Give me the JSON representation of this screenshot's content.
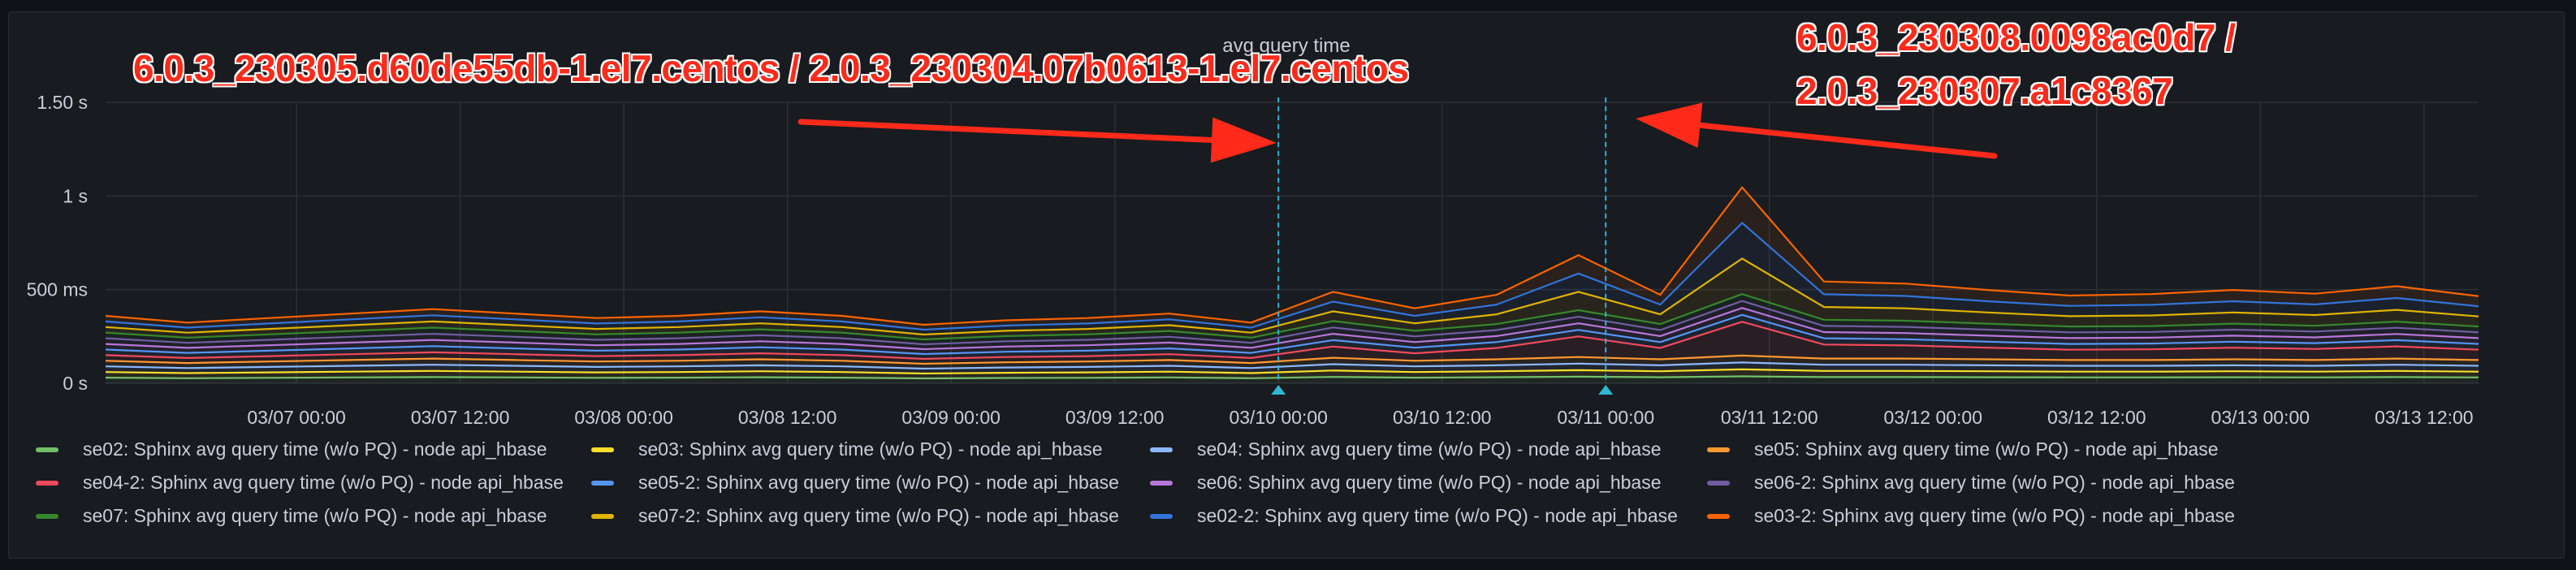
{
  "panel": {
    "title": "avg query time"
  },
  "annotations": {
    "left_text": "6.0.3_230305.d60de55db-1.el7.centos / 2.0.3_230304.07b0613-1.el7.centos",
    "right_line1": "6.0.3_230308.0098ac0d7 /",
    "right_line2": "2.0.3_230307.a1c8367"
  },
  "colors": {
    "panel_bg": "#181b1f",
    "grid": "#2c3038",
    "axis_text": "#ccccdc",
    "marker": "#2fb7d3",
    "annotation_red": "#ff2a1a"
  },
  "chart_data": {
    "type": "line",
    "title": "avg query time",
    "stacked": true,
    "fill": true,
    "x": [
      "03/06 10:00",
      "03/06 16:00",
      "03/06 22:00",
      "03/07 04:00",
      "03/07 10:00",
      "03/07 16:00",
      "03/07 22:00",
      "03/08 04:00",
      "03/08 10:00",
      "03/08 16:00",
      "03/08 22:00",
      "03/09 04:00",
      "03/09 10:00",
      "03/09 16:00",
      "03/09 22:00",
      "03/10 04:00",
      "03/10 10:00",
      "03/10 16:00",
      "03/10 22:00",
      "03/11 04:00",
      "03/11 10:00",
      "03/11 16:00",
      "03/11 22:00",
      "03/12 04:00",
      "03/12 10:00",
      "03/12 16:00",
      "03/12 22:00",
      "03/13 04:00",
      "03/13 10:00",
      "03/13 16:00"
    ],
    "x_ticks": [
      "03/07 00:00",
      "03/07 12:00",
      "03/08 00:00",
      "03/08 12:00",
      "03/09 00:00",
      "03/09 12:00",
      "03/10 00:00",
      "03/10 12:00",
      "03/11 00:00",
      "03/11 12:00",
      "03/12 00:00",
      "03/12 12:00",
      "03/13 00:00",
      "03/13 12:00"
    ],
    "y_ticks": [
      "0 s",
      "500 ms",
      "1 s",
      "1.50 s"
    ],
    "ylim_ms": [
      0,
      1500
    ],
    "ylabel": "",
    "grid": true,
    "legend_position": "bottom",
    "event_markers": [
      "03/10 00:00",
      "03/11 00:00"
    ],
    "series": [
      {
        "name": "se02: Sphinx avg query time (w/o PQ) - node api_hbase",
        "color": "#73bf69",
        "values": [
          30,
          27,
          29,
          31,
          33,
          31,
          29,
          30,
          32,
          30,
          26,
          28,
          29,
          31,
          27,
          34,
          30,
          32,
          35,
          32,
          37,
          33,
          33,
          32,
          31,
          31,
          32,
          31,
          33,
          31
        ]
      },
      {
        "name": "se03: Sphinx avg query time (w/o PQ) - node api_hbase",
        "color": "#fade2a",
        "values": [
          30,
          27,
          29,
          31,
          33,
          31,
          29,
          30,
          32,
          30,
          26,
          28,
          29,
          31,
          27,
          34,
          30,
          32,
          35,
          32,
          37,
          33,
          33,
          32,
          31,
          31,
          32,
          31,
          33,
          31
        ]
      },
      {
        "name": "se04: Sphinx avg query time (w/o PQ) - node api_hbase",
        "color": "#8ab8ff",
        "values": [
          30,
          27,
          29,
          31,
          33,
          31,
          29,
          30,
          32,
          30,
          26,
          28,
          29,
          31,
          27,
          34,
          30,
          32,
          35,
          32,
          37,
          33,
          33,
          32,
          31,
          31,
          32,
          31,
          33,
          31
        ]
      },
      {
        "name": "se05: Sphinx avg query time (w/o PQ) - node api_hbase",
        "color": "#ff9830",
        "values": [
          30,
          27,
          29,
          31,
          33,
          31,
          29,
          30,
          32,
          30,
          26,
          28,
          29,
          31,
          27,
          34,
          30,
          32,
          35,
          32,
          37,
          33,
          33,
          32,
          31,
          31,
          32,
          31,
          33,
          31
        ]
      },
      {
        "name": "se04-2: Sphinx avg query time (w/o PQ) - node api_hbase",
        "color": "#f2495c",
        "values": [
          30,
          27,
          29,
          31,
          33,
          31,
          29,
          30,
          32,
          30,
          26,
          28,
          29,
          31,
          27,
          60,
          40,
          60,
          110,
          60,
          180,
          75,
          70,
          62,
          55,
          57,
          62,
          59,
          65,
          55
        ]
      },
      {
        "name": "se05-2: Sphinx avg query time (w/o PQ) - node api_hbase",
        "color": "#5794f2",
        "values": [
          30,
          27,
          29,
          31,
          33,
          31,
          29,
          30,
          32,
          30,
          26,
          28,
          29,
          31,
          27,
          34,
          30,
          32,
          35,
          32,
          37,
          33,
          33,
          32,
          31,
          31,
          32,
          31,
          33,
          31
        ]
      },
      {
        "name": "se06: Sphinx avg query time (w/o PQ) - node api_hbase",
        "color": "#b877d9",
        "values": [
          30,
          27,
          29,
          31,
          33,
          31,
          29,
          30,
          32,
          30,
          26,
          28,
          29,
          31,
          27,
          34,
          30,
          32,
          35,
          32,
          37,
          33,
          33,
          32,
          31,
          31,
          32,
          31,
          33,
          31
        ]
      },
      {
        "name": "se06-2: Sphinx avg query time (w/o PQ) - node api_hbase",
        "color": "#705da0",
        "values": [
          30,
          27,
          29,
          31,
          33,
          31,
          29,
          30,
          32,
          30,
          26,
          28,
          29,
          31,
          27,
          34,
          30,
          32,
          35,
          32,
          37,
          33,
          33,
          32,
          31,
          31,
          32,
          31,
          33,
          31
        ]
      },
      {
        "name": "se07: Sphinx avg query time (w/o PQ) - node api_hbase",
        "color": "#37872d",
        "values": [
          30,
          27,
          29,
          31,
          33,
          31,
          29,
          30,
          32,
          30,
          26,
          28,
          29,
          31,
          27,
          34,
          30,
          32,
          35,
          32,
          37,
          33,
          33,
          32,
          31,
          31,
          32,
          31,
          33,
          31
        ]
      },
      {
        "name": "se07-2: Sphinx avg query time (w/o PQ) - node api_hbase",
        "color": "#e0b400",
        "values": [
          30,
          27,
          29,
          31,
          33,
          31,
          29,
          30,
          32,
          30,
          26,
          28,
          29,
          31,
          27,
          52,
          40,
          52,
          98,
          52,
          190,
          68,
          66,
          60,
          55,
          57,
          60,
          57,
          63,
          54
        ]
      },
      {
        "name": "se02-2: Sphinx avg query time (w/o PQ) - node api_hbase",
        "color": "#3274d9",
        "values": [
          30,
          27,
          29,
          31,
          33,
          31,
          29,
          30,
          32,
          30,
          26,
          28,
          29,
          31,
          27,
          52,
          40,
          52,
          98,
          52,
          190,
          68,
          66,
          60,
          55,
          57,
          60,
          57,
          63,
          54
        ]
      },
      {
        "name": "se03-2: Sphinx avg query time (w/o PQ) - node api_hbase",
        "color": "#fa6400",
        "values": [
          30,
          27,
          29,
          31,
          33,
          31,
          29,
          30,
          32,
          30,
          26,
          28,
          29,
          31,
          27,
          52,
          40,
          52,
          98,
          52,
          190,
          68,
          66,
          60,
          55,
          57,
          60,
          57,
          63,
          54
        ]
      }
    ]
  }
}
